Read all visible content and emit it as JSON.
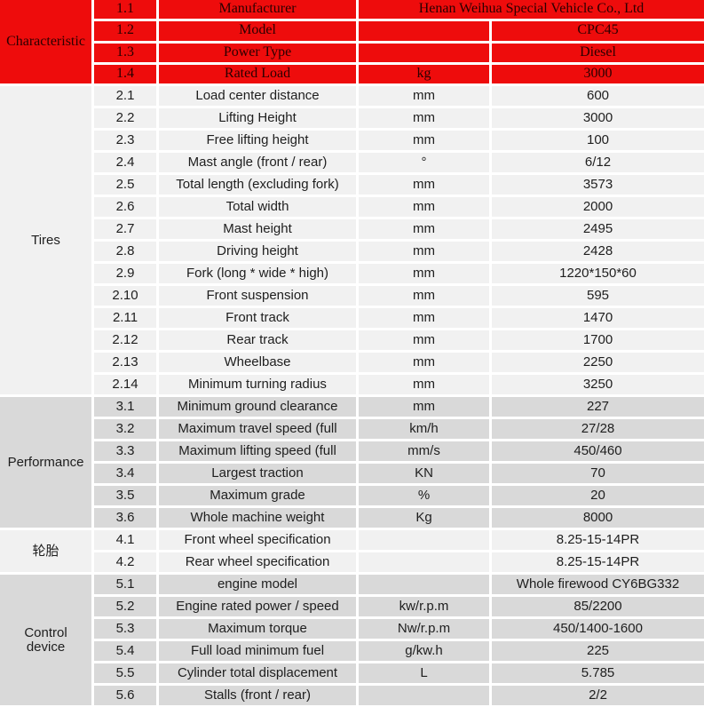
{
  "table": {
    "colors": {
      "header_red": "#ee0c0c",
      "section_light_bg": "#f1f1f1",
      "section_dark_bg": "#d9d9d9",
      "gridline": "#ffffff",
      "header_text": "#2b0000",
      "body_text": "#1e1e1e"
    },
    "sections": [
      {
        "category": "Characteristic",
        "style": "red",
        "rows": [
          {
            "no": "1.1",
            "name": "Manufacturer",
            "value": "Henan Weihua Special Vehicle Co., Ltd",
            "value_span": true
          },
          {
            "no": "1.2",
            "name": "Model",
            "unit": "",
            "value": "CPC45"
          },
          {
            "no": "1.3",
            "name": "Power Type",
            "unit": "",
            "value": "Diesel"
          },
          {
            "no": "1.4",
            "name": "Rated Load",
            "unit": "kg",
            "value": "3000"
          }
        ]
      },
      {
        "category": "Tires",
        "style": "light",
        "rows": [
          {
            "no": "2.1",
            "name": "Load center distance",
            "unit": "mm",
            "value": "600"
          },
          {
            "no": "2.2",
            "name": "Lifting Height",
            "unit": "mm",
            "value": "3000"
          },
          {
            "no": "2.3",
            "name": "Free lifting height",
            "unit": "mm",
            "value": "100"
          },
          {
            "no": "2.4",
            "name": "Mast angle (front / rear)",
            "unit": "°",
            "value": "6/12"
          },
          {
            "no": "2.5",
            "name": "Total length (excluding fork)",
            "unit": "mm",
            "value": "3573"
          },
          {
            "no": "2.6",
            "name": "Total width",
            "unit": "mm",
            "value": "2000"
          },
          {
            "no": "2.7",
            "name": "Mast height",
            "unit": "mm",
            "value": "2495"
          },
          {
            "no": "2.8",
            "name": "Driving height",
            "unit": "mm",
            "value": "2428"
          },
          {
            "no": "2.9",
            "name": "Fork (long * wide * high)",
            "unit": "mm",
            "value": "1220*150*60"
          },
          {
            "no": "2.10",
            "name": "Front suspension",
            "unit": "mm",
            "value": "595"
          },
          {
            "no": "2.11",
            "name": "Front track",
            "unit": "mm",
            "value": "1470"
          },
          {
            "no": "2.12",
            "name": "Rear track",
            "unit": "mm",
            "value": "1700"
          },
          {
            "no": "2.13",
            "name": "Wheelbase",
            "unit": "mm",
            "value": "2250"
          },
          {
            "no": "2.14",
            "name": "Minimum turning radius",
            "unit": "mm",
            "value": "3250"
          }
        ]
      },
      {
        "category": "Performance",
        "style": "dark",
        "rows": [
          {
            "no": "3.1",
            "name": "Minimum ground clearance",
            "unit": "mm",
            "value": "227"
          },
          {
            "no": "3.2",
            "name": "Maximum travel speed (full",
            "unit": "km/h",
            "value": "27/28"
          },
          {
            "no": "3.3",
            "name": "Maximum lifting speed (full",
            "unit": "mm/s",
            "value": "450/460"
          },
          {
            "no": "3.4",
            "name": "Largest traction",
            "unit": "KN",
            "value": "70"
          },
          {
            "no": "3.5",
            "name": "Maximum grade",
            "unit": "%",
            "value": "20"
          },
          {
            "no": "3.6",
            "name": "Whole machine weight",
            "unit": "Kg",
            "value": "8000"
          }
        ]
      },
      {
        "category": "轮胎",
        "style": "light",
        "rows": [
          {
            "no": "4.1",
            "name": "Front wheel specification",
            "unit": "",
            "value": "8.25-15-14PR"
          },
          {
            "no": "4.2",
            "name": "Rear wheel specification",
            "unit": "",
            "value": "8.25-15-14PR"
          }
        ]
      },
      {
        "category": "Control device",
        "style": "dark",
        "rows": [
          {
            "no": "5.1",
            "name": "engine model",
            "unit": "",
            "value": "Whole firewood CY6BG332"
          },
          {
            "no": "5.2",
            "name": "Engine rated power / speed",
            "unit": "kw/r.p.m",
            "value": "85/2200"
          },
          {
            "no": "5.3",
            "name": "Maximum torque",
            "unit": "Nw/r.p.m",
            "value": "450/1400-1600"
          },
          {
            "no": "5.4",
            "name": "Full load minimum fuel",
            "unit": "g/kw.h",
            "value": "225"
          },
          {
            "no": "5.5",
            "name": "Cylinder total displacement",
            "unit": "L",
            "value": "5.785"
          },
          {
            "no": "5.6",
            "name": "Stalls (front / rear)",
            "unit": "",
            "value": "2/2"
          }
        ]
      }
    ]
  }
}
